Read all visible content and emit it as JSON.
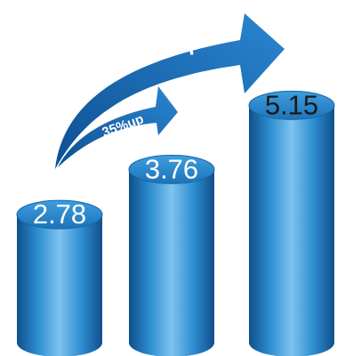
{
  "chart_data": {
    "type": "bar",
    "style": "3d-cylinder",
    "values": [
      2.78,
      3.76,
      5.15
    ],
    "data_labels": [
      "2.78",
      "3.76",
      "5.15"
    ],
    "label_colors": [
      "#ffffff",
      "#ffffff",
      "#1a1a1a"
    ],
    "ylim": [
      0,
      5.6
    ],
    "grid": false,
    "annotations": [
      {
        "text": "35%up",
        "from": 0,
        "to": 1
      },
      {
        "text": "85%up",
        "from": 0,
        "to": 2
      }
    ],
    "colors": {
      "cylinder_light": "#7fc3ee",
      "cylinder_mid": "#2e8fd2",
      "cylinder_dark": "#0f4f8c",
      "arrow": "#1b6fb8"
    }
  }
}
